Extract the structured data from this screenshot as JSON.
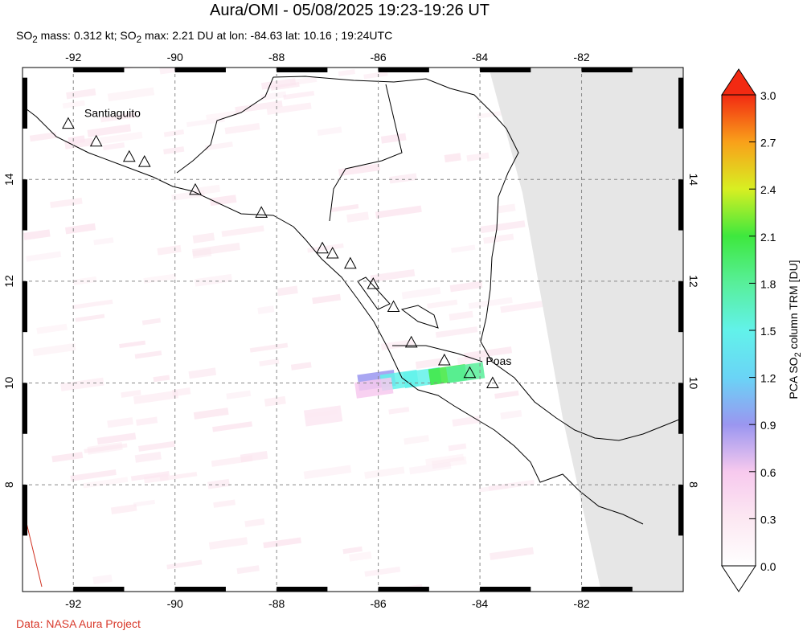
{
  "title": "Aura/OMI - 05/08/2025 19:23-19:26 UT",
  "subtitle": {
    "p1": "SO",
    "sub1": "2",
    "p2": " mass: 0.312 kt; SO",
    "sub2": "2",
    "p3": " max: 2.21 DU at lon: -84.63 lat: 10.16 ; 19:24UTC"
  },
  "credit": "Data: NASA Aura Project",
  "map": {
    "lon_range": [
      -93,
      -80
    ],
    "lat_range": [
      5.9,
      16.2
    ],
    "lon_ticks": [
      {
        "v": -92,
        "label": "-92"
      },
      {
        "v": -90,
        "label": "-90"
      },
      {
        "v": -88,
        "label": "-88"
      },
      {
        "v": -86,
        "label": "-86"
      },
      {
        "v": -84,
        "label": "-84"
      },
      {
        "v": -82,
        "label": "-82"
      }
    ],
    "lat_ticks": [
      {
        "v": 8,
        "label": "8"
      },
      {
        "v": 10,
        "label": "10"
      },
      {
        "v": 12,
        "label": "12"
      },
      {
        "v": 14,
        "label": "14"
      }
    ],
    "grid": true,
    "no_data_color": "#e6e6e6",
    "volcanoes": [
      {
        "lon": -92.1,
        "lat": 15.1,
        "name": "Santiaguito"
      },
      {
        "lon": -91.55,
        "lat": 14.75,
        "name": ""
      },
      {
        "lon": -90.9,
        "lat": 14.45,
        "name": ""
      },
      {
        "lon": -90.6,
        "lat": 14.35,
        "name": ""
      },
      {
        "lon": -89.6,
        "lat": 13.8,
        "name": ""
      },
      {
        "lon": -88.3,
        "lat": 13.35,
        "name": ""
      },
      {
        "lon": -87.1,
        "lat": 12.65,
        "name": ""
      },
      {
        "lon": -86.9,
        "lat": 12.55,
        "name": ""
      },
      {
        "lon": -86.55,
        "lat": 12.35,
        "name": ""
      },
      {
        "lon": -86.1,
        "lat": 11.95,
        "name": ""
      },
      {
        "lon": -85.7,
        "lat": 11.5,
        "name": ""
      },
      {
        "lon": -85.35,
        "lat": 10.8,
        "name": ""
      },
      {
        "lon": -84.7,
        "lat": 10.45,
        "name": ""
      },
      {
        "lon": -84.2,
        "lat": 10.2,
        "name": "Poas"
      },
      {
        "lon": -83.75,
        "lat": 10.0,
        "name": ""
      }
    ],
    "so2_plume": [
      {
        "lon": -86.05,
        "lat": 10.05,
        "du": 1.0
      },
      {
        "lon": -85.6,
        "lat": 10.05,
        "du": 1.6
      },
      {
        "lon": -85.15,
        "lat": 10.1,
        "du": 1.5
      },
      {
        "lon": -84.65,
        "lat": 10.16,
        "du": 2.2
      },
      {
        "lon": -84.3,
        "lat": 10.2,
        "du": 1.8
      },
      {
        "lon": -86.1,
        "lat": 9.9,
        "du": 0.8
      },
      {
        "lon": -87.1,
        "lat": 9.35,
        "du": 0.45
      }
    ]
  },
  "colorbar": {
    "label_main": "PCA SO",
    "label_sub": "2",
    "label_end": " column TRM [DU]",
    "min": 0,
    "max": 3,
    "ticks": [
      "0.0",
      "0.3",
      "0.6",
      "0.9",
      "1.2",
      "1.5",
      "1.8",
      "2.1",
      "2.4",
      "2.7",
      "3.0"
    ]
  }
}
